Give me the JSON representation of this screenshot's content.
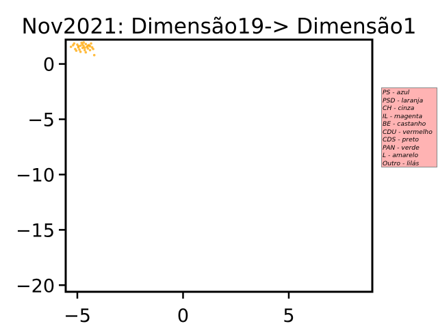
{
  "chart_data": {
    "type": "scatter",
    "title": "Nov2021: Dimensão19-> Dimensão1",
    "xlabel": "",
    "ylabel": "",
    "xlim": [
      -5.55,
      8.95
    ],
    "ylim": [
      -20.6,
      2.2
    ],
    "xticks": [
      -5,
      0,
      5
    ],
    "yticks": [
      0,
      -5,
      -10,
      -15,
      -20
    ],
    "xtick_labels": [
      "−5",
      "0",
      "5"
    ],
    "ytick_labels": [
      "0",
      "−5",
      "−10",
      "−15",
      "−20"
    ],
    "grid": false,
    "series": [
      {
        "color": "#ffa500",
        "points": [
          [
            -5.3,
            1.55
          ],
          [
            -5.2,
            1.7
          ],
          [
            -5.1,
            1.35
          ],
          [
            -5.0,
            1.75
          ],
          [
            -4.95,
            1.5
          ],
          [
            -4.9,
            1.3
          ],
          [
            -4.85,
            1.65
          ],
          [
            -4.8,
            1.9
          ],
          [
            -4.75,
            1.45
          ],
          [
            -4.7,
            1.6
          ],
          [
            -4.65,
            1.25
          ],
          [
            -4.6,
            1.8
          ],
          [
            -4.55,
            1.55
          ],
          [
            -4.5,
            1.4
          ],
          [
            -4.45,
            1.7
          ],
          [
            -4.4,
            1.6
          ],
          [
            -4.35,
            1.85
          ],
          [
            -4.3,
            1.5
          ],
          [
            -4.25,
            1.35
          ],
          [
            -5.05,
            1.2
          ],
          [
            -4.85,
            1.1
          ],
          [
            -4.7,
            1.95
          ],
          [
            -4.4,
            1.25
          ],
          [
            -5.15,
            1.85
          ],
          [
            -4.6,
            1.05
          ],
          [
            -4.5,
            1.65
          ],
          [
            -4.2,
            0.8
          ],
          [
            -4.95,
            1.6
          ],
          [
            -4.75,
            1.75
          ],
          [
            -4.65,
            1.45
          ]
        ]
      }
    ],
    "legend_placement": "right",
    "legend_background": "#ffb3b3"
  },
  "legend": {
    "lines": [
      "PS - azul",
      "PSD - laranja",
      "CH - cinza",
      "IL - magenta",
      "BE - castanho",
      "CDU - vermelho",
      "CDS - preto",
      "PAN - verde",
      "L - amarelo",
      "Outro - lilás"
    ]
  }
}
